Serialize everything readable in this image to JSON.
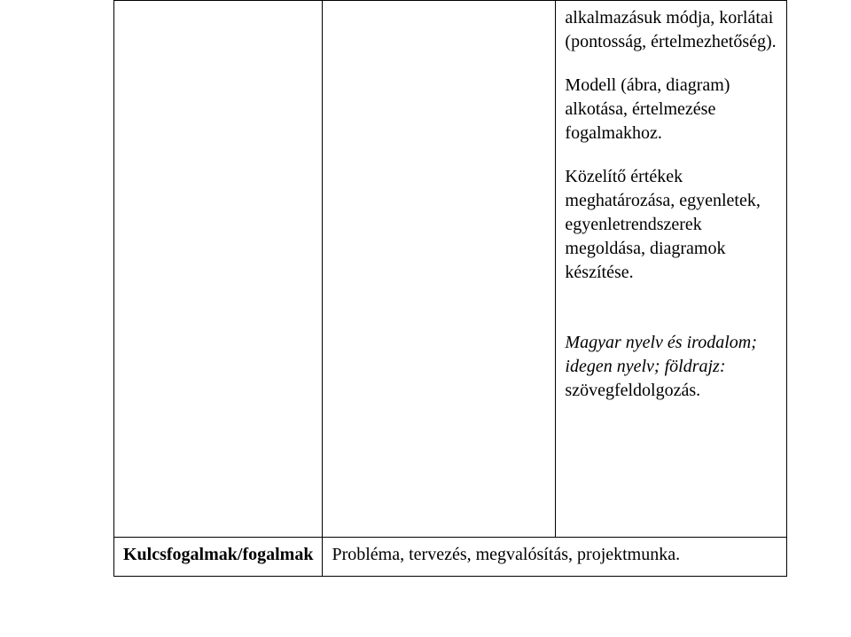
{
  "table": {
    "row1": {
      "left": "",
      "mid": "",
      "right": {
        "p1": "alkalmazásuk módja, korlátai (pontosság, értelmezhetőség).",
        "p2": "Modell (ábra, diagram) alkotása, értelmezése fogalmakhoz.",
        "p3": "Közelítő értékek meghatározása, egyenletek, egyenletrendszerek megoldása, diagramok készítése.",
        "p4_italic_a": "Magyar nyelv és irodalom; idegen nyelv; földrajz:",
        "p4_rest": " szövegfeldolgozás."
      }
    },
    "row2": {
      "left": "Kulcsfogalmak/fogalmak",
      "right": "Probléma, tervezés, megvalósítás, projektmunka."
    }
  }
}
